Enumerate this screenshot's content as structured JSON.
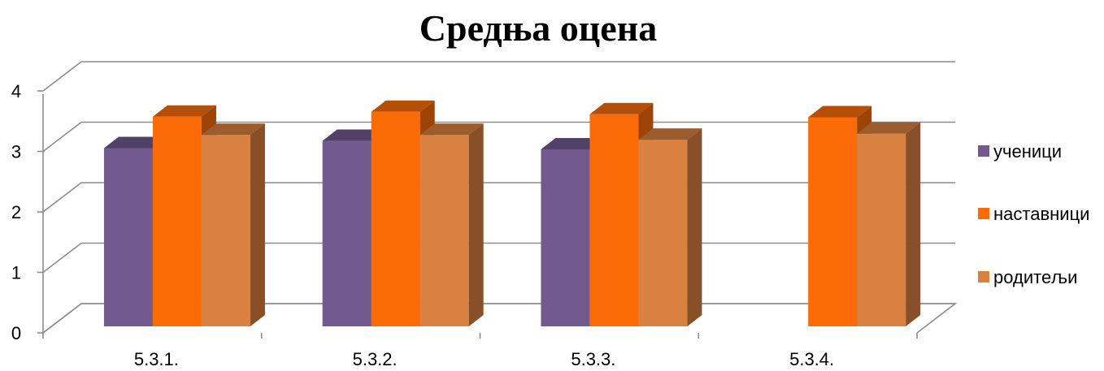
{
  "chart_data": {
    "type": "bar",
    "style": "3d-clustered-column",
    "title": "Средња оцена",
    "xlabel": "",
    "ylabel": "",
    "categories": [
      "5.3.1.",
      "5.3.2.",
      "5.3.3.",
      "5.3.4."
    ],
    "series": [
      {
        "name": "ученици",
        "color": "#725a8f",
        "values": [
          3.0,
          3.12,
          2.98,
          null
        ]
      },
      {
        "name": "наставници",
        "color": "#fb6c08",
        "values": [
          3.52,
          3.6,
          3.56,
          3.51
        ]
      },
      {
        "name": "родитељи",
        "color": "#d98140",
        "values": [
          3.22,
          3.22,
          3.14,
          3.24
        ]
      }
    ],
    "ylim": [
      0,
      4
    ],
    "yticks": [
      "0",
      "1",
      "2",
      "3",
      "4"
    ],
    "grid": true,
    "legend_position": "right"
  }
}
